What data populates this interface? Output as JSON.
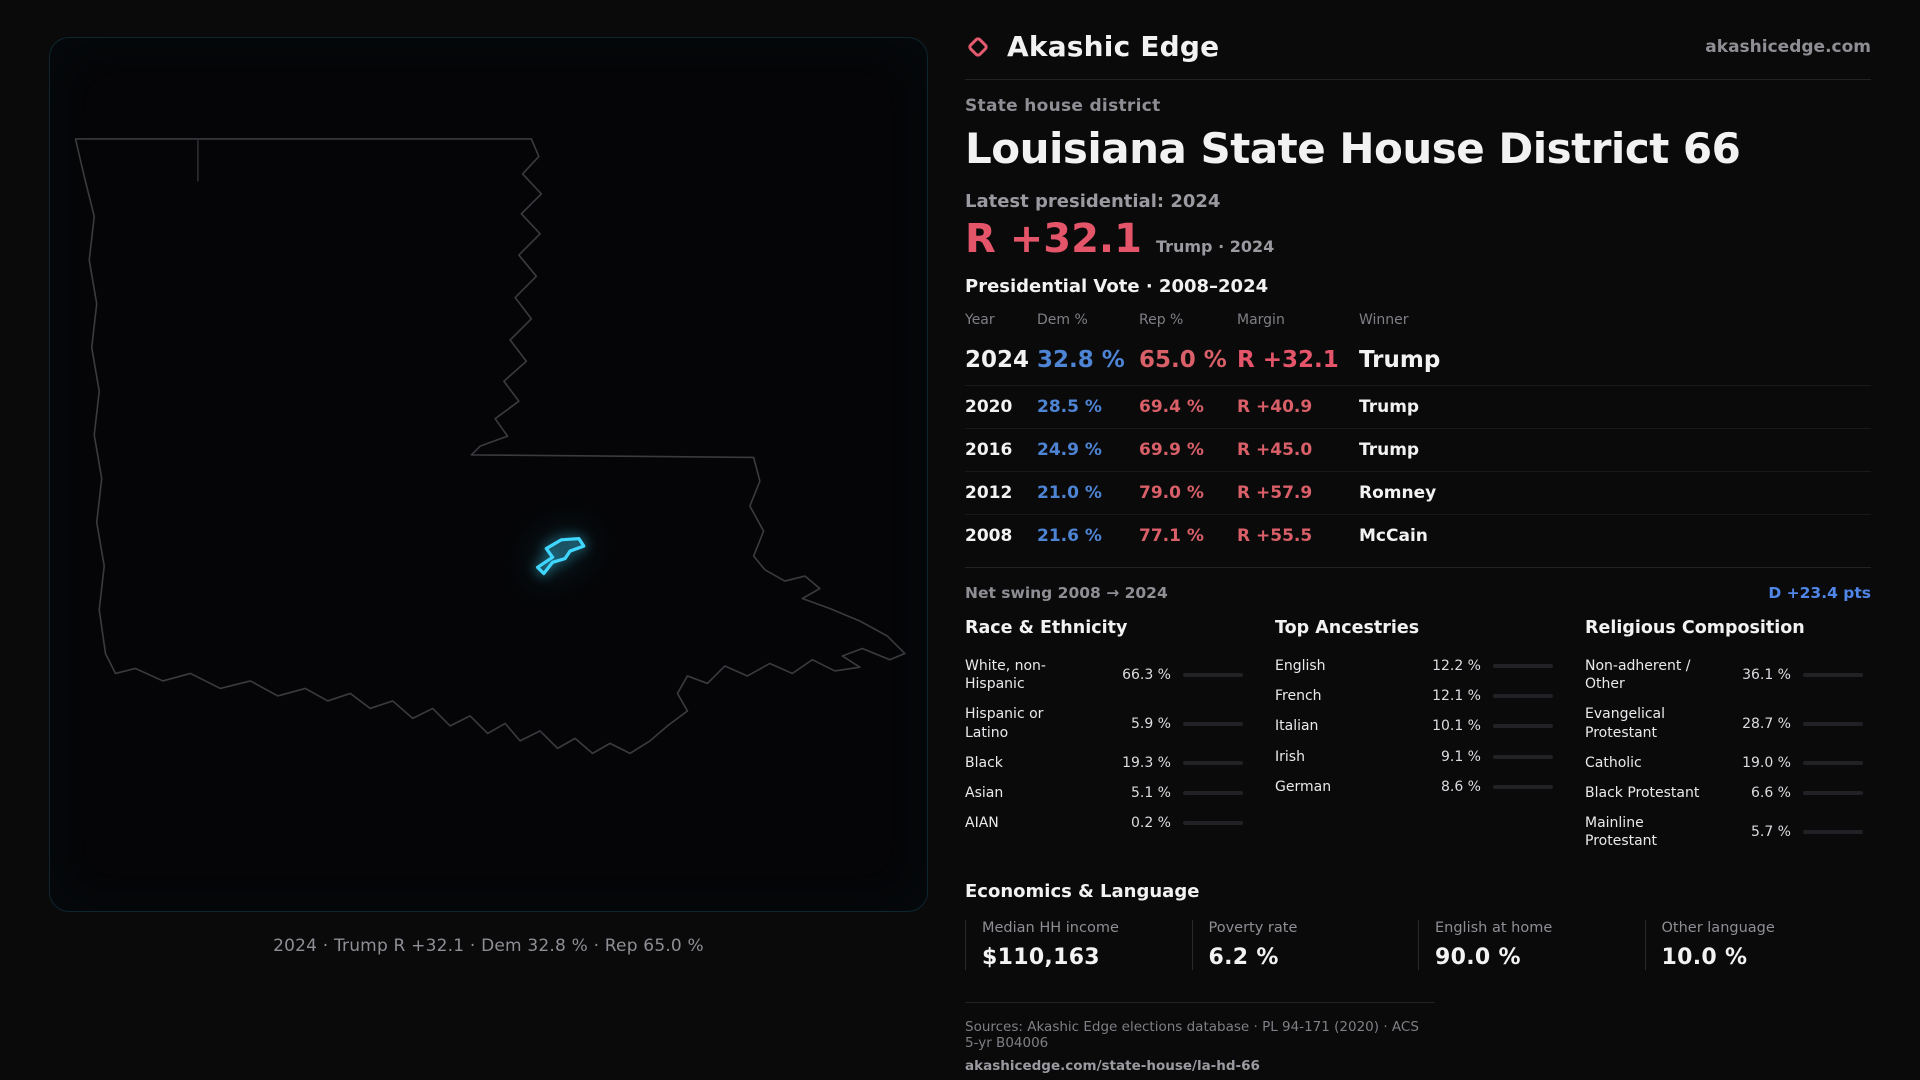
{
  "colors": {
    "accent_red": "#e4556a",
    "dem_blue": "#4e84d4",
    "rep_red": "#d95f68",
    "swing_blue": "#4f86e8",
    "district_cyan": "#3fd6ff"
  },
  "brand": {
    "name": "Akashic Edge",
    "domain": "akashicedge.com"
  },
  "map": {
    "caption": "2024 · Trump R +32.1 · Dem 32.8 % · Rep 65.0 %",
    "district_color": "#3fd6ff"
  },
  "header": {
    "kicker": "State house district",
    "title": "Louisiana State House District 66",
    "latest_label": "Latest presidential: 2024",
    "headline_margin": "R +32.1",
    "headline_detail": "Trump · 2024"
  },
  "vote_table": {
    "title": "Presidential Vote · 2008–2024",
    "columns": [
      "Year",
      "Dem %",
      "Rep %",
      "Margin",
      "Winner"
    ],
    "rows": [
      {
        "year": "2024",
        "dem": "32.8 %",
        "rep": "65.0 %",
        "margin": "R +32.1",
        "winner": "Trump"
      },
      {
        "year": "2020",
        "dem": "28.5 %",
        "rep": "69.4 %",
        "margin": "R +40.9",
        "winner": "Trump"
      },
      {
        "year": "2016",
        "dem": "24.9 %",
        "rep": "69.9 %",
        "margin": "R +45.0",
        "winner": "Trump"
      },
      {
        "year": "2012",
        "dem": "21.0 %",
        "rep": "79.0 %",
        "margin": "R +57.9",
        "winner": "Romney"
      },
      {
        "year": "2008",
        "dem": "21.6 %",
        "rep": "77.1 %",
        "margin": "R +55.5",
        "winner": "McCain"
      }
    ]
  },
  "swing": {
    "label": "Net swing 2008 → 2024",
    "value": "D +23.4 pts"
  },
  "demographics": [
    {
      "title": "Race & Ethnicity",
      "rows": [
        {
          "label": "White, non-Hispanic",
          "value": "66.3 %",
          "pct": 66.3,
          "color": "#9d99c9"
        },
        {
          "label": "Hispanic or Latino",
          "value": "5.9 %",
          "pct": 5.9,
          "color": "#d99a3f"
        },
        {
          "label": "Black",
          "value": "19.3 %",
          "pct": 19.3,
          "color": "#8b7ce0"
        },
        {
          "label": "Asian",
          "value": "5.1 %",
          "pct": 5.1,
          "color": "#3bcf8e"
        },
        {
          "label": "AIAN",
          "value": "0.2 %",
          "pct": 0.2,
          "color": "#9aa0a8"
        }
      ]
    },
    {
      "title": "Top Ancestries",
      "rows": [
        {
          "label": "English",
          "value": "12.2 %",
          "pct": 12.2,
          "color": "#a8adb5"
        },
        {
          "label": "French",
          "value": "12.1 %",
          "pct": 12.1,
          "color": "#a8adb5"
        },
        {
          "label": "Italian",
          "value": "10.1 %",
          "pct": 10.1,
          "color": "#a8adb5"
        },
        {
          "label": "Irish",
          "value": "9.1 %",
          "pct": 9.1,
          "color": "#a8adb5"
        },
        {
          "label": "German",
          "value": "8.6 %",
          "pct": 8.6,
          "color": "#a8adb5"
        }
      ]
    },
    {
      "title": "Religious Composition",
      "rows": [
        {
          "label": "Non-adherent / Other",
          "value": "36.1 %",
          "pct": 36.1,
          "color": "#9aa0a8"
        },
        {
          "label": "Evangelical Protestant",
          "value": "28.7 %",
          "pct": 28.7,
          "color": "#e07a7f"
        },
        {
          "label": "Catholic",
          "value": "19.0 %",
          "pct": 19.0,
          "color": "#ddb33f"
        },
        {
          "label": "Black Protestant",
          "value": "6.6 %",
          "pct": 6.6,
          "color": "#8b7ce0"
        },
        {
          "label": "Mainline Protestant",
          "value": "5.7 %",
          "pct": 5.7,
          "color": "#5b8bd9"
        }
      ]
    }
  ],
  "economics": {
    "title": "Economics & Language",
    "stats": [
      {
        "label": "Median HH income",
        "value": "$110,163"
      },
      {
        "label": "Poverty rate",
        "value": "6.2 %"
      },
      {
        "label": "English at home",
        "value": "90.0 %"
      },
      {
        "label": "Other language",
        "value": "10.0 %"
      }
    ]
  },
  "footer": {
    "sources": "Sources: Akashic Edge elections database · PL 94-171 (2020) · ACS 5-yr B04006",
    "permalink": "akashicedge.com/state-house/la-hd-66"
  },
  "chart_data": [
    {
      "type": "table",
      "title": "Presidential Vote · 2008–2024",
      "columns": [
        "Year",
        "Dem %",
        "Rep %",
        "Margin",
        "Winner"
      ],
      "rows": [
        [
          2024,
          32.8,
          65.0,
          "R +32.1",
          "Trump"
        ],
        [
          2020,
          28.5,
          69.4,
          "R +40.9",
          "Trump"
        ],
        [
          2016,
          24.9,
          69.9,
          "R +45.0",
          "Trump"
        ],
        [
          2012,
          21.0,
          79.0,
          "R +57.9",
          "Romney"
        ],
        [
          2008,
          21.6,
          77.1,
          "R +55.5",
          "McCain"
        ]
      ],
      "annotations": [
        "Net swing 2008 → 2024: D +23.4 pts",
        "Latest margin R +32.1 (Trump · 2024)"
      ]
    },
    {
      "type": "bar",
      "title": "Race & Ethnicity",
      "categories": [
        "White, non-Hispanic",
        "Hispanic or Latino",
        "Black",
        "Asian",
        "AIAN"
      ],
      "values": [
        66.3,
        5.9,
        19.3,
        5.1,
        0.2
      ],
      "xlabel": "",
      "ylabel": "Percent",
      "ylim": [
        0,
        100
      ]
    },
    {
      "type": "bar",
      "title": "Top Ancestries",
      "categories": [
        "English",
        "French",
        "Italian",
        "Irish",
        "German"
      ],
      "values": [
        12.2,
        12.1,
        10.1,
        9.1,
        8.6
      ],
      "xlabel": "",
      "ylabel": "Percent",
      "ylim": [
        0,
        100
      ]
    },
    {
      "type": "bar",
      "title": "Religious Composition",
      "categories": [
        "Non-adherent / Other",
        "Evangelical Protestant",
        "Catholic",
        "Black Protestant",
        "Mainline Protestant"
      ],
      "values": [
        36.1,
        28.7,
        19.0,
        6.6,
        5.7
      ],
      "xlabel": "",
      "ylabel": "Percent",
      "ylim": [
        0,
        100
      ]
    },
    {
      "type": "table",
      "title": "Economics & Language",
      "columns": [
        "Median HH income",
        "Poverty rate",
        "English at home",
        "Other language"
      ],
      "rows": [
        [
          "$110,163",
          "6.2 %",
          "90.0 %",
          "10.0 %"
        ]
      ]
    }
  ]
}
